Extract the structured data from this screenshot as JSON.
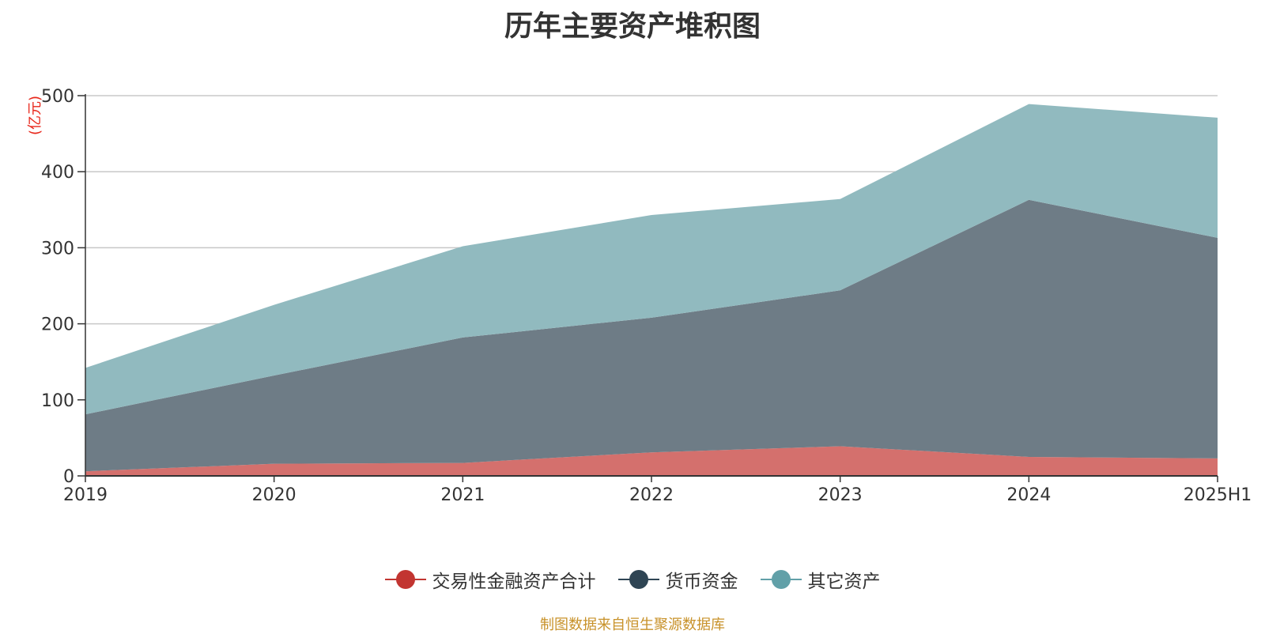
{
  "chart_data": {
    "type": "area",
    "stacked": true,
    "title": "历年主要资产堆积图",
    "unit_label": "(亿元)",
    "categories": [
      "2019",
      "2020",
      "2021",
      "2022",
      "2023",
      "2024",
      "2025H1"
    ],
    "ylim": [
      0,
      500
    ],
    "yticks": [
      0,
      100,
      200,
      300,
      400,
      500
    ],
    "grid": true,
    "legend_position": "bottom",
    "series": [
      {
        "name": "交易性金融资产合计",
        "color": "#c23531",
        "fill": "#d4706d",
        "values": [
          6,
          16,
          17,
          31,
          39,
          25,
          23
        ]
      },
      {
        "name": "货币资金",
        "color": "#2f4554",
        "fill": "#6e7c86",
        "values": [
          75,
          116,
          165,
          177,
          205,
          338,
          290
        ]
      },
      {
        "name": "其它资产",
        "color": "#61a0a8",
        "fill": "#91babf",
        "values": [
          61,
          93,
          120,
          135,
          120,
          126,
          158
        ]
      }
    ]
  },
  "footer": {
    "source": "制图数据来自恒生聚源数据库"
  }
}
